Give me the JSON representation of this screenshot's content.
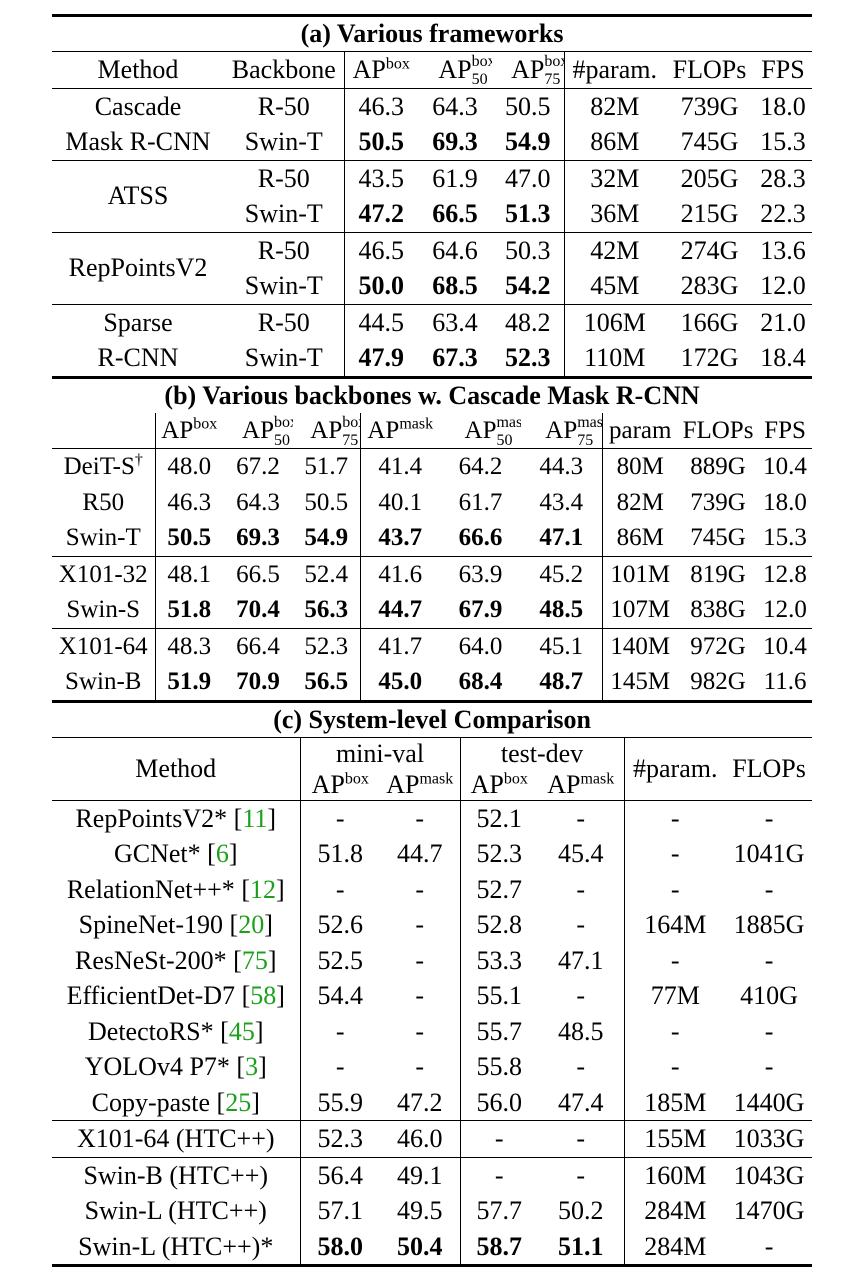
{
  "table_a": {
    "caption": "(a) Various frameworks",
    "headers": {
      "method": "Method",
      "backbone": "Backbone",
      "ap": "AP",
      "sup_box": "box",
      "sub_50": "50",
      "sub_75": "75",
      "param": "#param.",
      "flops": "FLOPs",
      "fps": "FPS"
    },
    "groups": [
      {
        "method_lines": [
          "Cascade",
          "Mask R-CNN"
        ],
        "rows": [
          {
            "backbone": "R-50",
            "ap": "46.3",
            "ap50": "64.3",
            "ap75": "50.5",
            "param": "82M",
            "flops": "739G",
            "fps": "18.0"
          },
          {
            "backbone": "Swin-T",
            "ap": "50.5",
            "ap50": "69.3",
            "ap75": "54.9",
            "param": "86M",
            "flops": "745G",
            "fps": "15.3"
          }
        ]
      },
      {
        "method_lines": [
          "ATSS"
        ],
        "rows": [
          {
            "backbone": "R-50",
            "ap": "43.5",
            "ap50": "61.9",
            "ap75": "47.0",
            "param": "32M",
            "flops": "205G",
            "fps": "28.3"
          },
          {
            "backbone": "Swin-T",
            "ap": "47.2",
            "ap50": "66.5",
            "ap75": "51.3",
            "param": "36M",
            "flops": "215G",
            "fps": "22.3"
          }
        ]
      },
      {
        "method_lines": [
          "RepPointsV2"
        ],
        "rows": [
          {
            "backbone": "R-50",
            "ap": "46.5",
            "ap50": "64.6",
            "ap75": "50.3",
            "param": "42M",
            "flops": "274G",
            "fps": "13.6"
          },
          {
            "backbone": "Swin-T",
            "ap": "50.0",
            "ap50": "68.5",
            "ap75": "54.2",
            "param": "45M",
            "flops": "283G",
            "fps": "12.0"
          }
        ]
      },
      {
        "method_lines": [
          "Sparse",
          "R-CNN"
        ],
        "rows": [
          {
            "backbone": "R-50",
            "ap": "44.5",
            "ap50": "63.4",
            "ap75": "48.2",
            "param": "106M",
            "flops": "166G",
            "fps": "21.0"
          },
          {
            "backbone": "Swin-T",
            "ap": "47.9",
            "ap50": "67.3",
            "ap75": "52.3",
            "param": "110M",
            "flops": "172G",
            "fps": "18.4"
          }
        ]
      }
    ]
  },
  "table_b": {
    "caption": "(b) Various backbones w. Cascade Mask R-CNN",
    "headers": {
      "ap": "AP",
      "sup_box": "box",
      "sup_mask": "mask",
      "sub_50": "50",
      "sub_75": "75",
      "param": "param",
      "flops": "FLOPs",
      "fps": "FPS"
    },
    "groups": [
      [
        {
          "name": "DeiT-S",
          "dagger": "†",
          "v": [
            "48.0",
            "67.2",
            "51.7",
            "41.4",
            "64.2",
            "44.3"
          ],
          "param": "80M",
          "flops": "889G",
          "fps": "10.4",
          "bold": false
        },
        {
          "name": "R50",
          "dagger": "",
          "v": [
            "46.3",
            "64.3",
            "50.5",
            "40.1",
            "61.7",
            "43.4"
          ],
          "param": "82M",
          "flops": "739G",
          "fps": "18.0",
          "bold": false
        },
        {
          "name": "Swin-T",
          "dagger": "",
          "v": [
            "50.5",
            "69.3",
            "54.9",
            "43.7",
            "66.6",
            "47.1"
          ],
          "param": "86M",
          "flops": "745G",
          "fps": "15.3",
          "bold": true
        }
      ],
      [
        {
          "name": "X101-32",
          "dagger": "",
          "v": [
            "48.1",
            "66.5",
            "52.4",
            "41.6",
            "63.9",
            "45.2"
          ],
          "param": "101M",
          "flops": "819G",
          "fps": "12.8",
          "bold": false
        },
        {
          "name": "Swin-S",
          "dagger": "",
          "v": [
            "51.8",
            "70.4",
            "56.3",
            "44.7",
            "67.9",
            "48.5"
          ],
          "param": "107M",
          "flops": "838G",
          "fps": "12.0",
          "bold": true
        }
      ],
      [
        {
          "name": "X101-64",
          "dagger": "",
          "v": [
            "48.3",
            "66.4",
            "52.3",
            "41.7",
            "64.0",
            "45.1"
          ],
          "param": "140M",
          "flops": "972G",
          "fps": "10.4",
          "bold": false
        },
        {
          "name": "Swin-B",
          "dagger": "",
          "v": [
            "51.9",
            "70.9",
            "56.5",
            "45.0",
            "68.4",
            "48.7"
          ],
          "param": "145M",
          "flops": "982G",
          "fps": "11.6",
          "bold": true
        }
      ]
    ]
  },
  "table_c": {
    "caption": "(c) System-level Comparison",
    "headers": {
      "method": "Method",
      "mini_val": "mini-val",
      "test_dev": "test-dev",
      "ap": "AP",
      "sup_box": "box",
      "sup_mask": "mask",
      "param": "#param.",
      "flops": "FLOPs"
    },
    "groups": [
      [
        {
          "name": "RepPointsV2*",
          "cite": "11",
          "mv_box": "-",
          "mv_mask": "-",
          "td_box": "52.1",
          "td_mask": "-",
          "param": "-",
          "flops": "-"
        },
        {
          "name": "GCNet*",
          "cite": "6",
          "mv_box": "51.8",
          "mv_mask": "44.7",
          "td_box": "52.3",
          "td_mask": "45.4",
          "param": "-",
          "flops": "1041G"
        },
        {
          "name": "RelationNet++*",
          "cite": "12",
          "mv_box": "-",
          "mv_mask": "-",
          "td_box": "52.7",
          "td_mask": "-",
          "param": "-",
          "flops": "-"
        },
        {
          "name": "SpineNet-190",
          "cite": "20",
          "mv_box": "52.6",
          "mv_mask": "-",
          "td_box": "52.8",
          "td_mask": "-",
          "param": "164M",
          "flops": "1885G"
        },
        {
          "name": "ResNeSt-200*",
          "cite": "75",
          "mv_box": "52.5",
          "mv_mask": "-",
          "td_box": "53.3",
          "td_mask": "47.1",
          "param": "-",
          "flops": "-"
        },
        {
          "name": "EfficientDet-D7",
          "cite": "58",
          "mv_box": "54.4",
          "mv_mask": "-",
          "td_box": "55.1",
          "td_mask": "-",
          "param": "77M",
          "flops": "410G"
        },
        {
          "name": "DetectoRS*",
          "cite": "45",
          "mv_box": "-",
          "mv_mask": "-",
          "td_box": "55.7",
          "td_mask": "48.5",
          "param": "-",
          "flops": "-"
        },
        {
          "name": "YOLOv4 P7*",
          "cite": "3",
          "mv_box": "-",
          "mv_mask": "-",
          "td_box": "55.8",
          "td_mask": "-",
          "param": "-",
          "flops": "-"
        },
        {
          "name": "Copy-paste",
          "cite": "25",
          "mv_box": "55.9",
          "mv_mask": "47.2",
          "td_box": "56.0",
          "td_mask": "47.4",
          "param": "185M",
          "flops": "1440G"
        }
      ],
      [
        {
          "name": "X101-64 (HTC++)",
          "cite": "",
          "mv_box": "52.3",
          "mv_mask": "46.0",
          "td_box": "-",
          "td_mask": "-",
          "param": "155M",
          "flops": "1033G"
        }
      ],
      [
        {
          "name": "Swin-B (HTC++)",
          "cite": "",
          "mv_box": "56.4",
          "mv_mask": "49.1",
          "td_box": "-",
          "td_mask": "-",
          "param": "160M",
          "flops": "1043G"
        },
        {
          "name": "Swin-L (HTC++)",
          "cite": "",
          "mv_box": "57.1",
          "mv_mask": "49.5",
          "td_box": "57.7",
          "td_mask": "50.2",
          "param": "284M",
          "flops": "1470G"
        },
        {
          "name": "Swin-L (HTC++)*",
          "cite": "",
          "mv_box": "58.0",
          "mv_mask": "50.4",
          "td_box": "58.7",
          "td_mask": "51.1",
          "param": "284M",
          "flops": "-",
          "bold": true
        }
      ]
    ]
  }
}
